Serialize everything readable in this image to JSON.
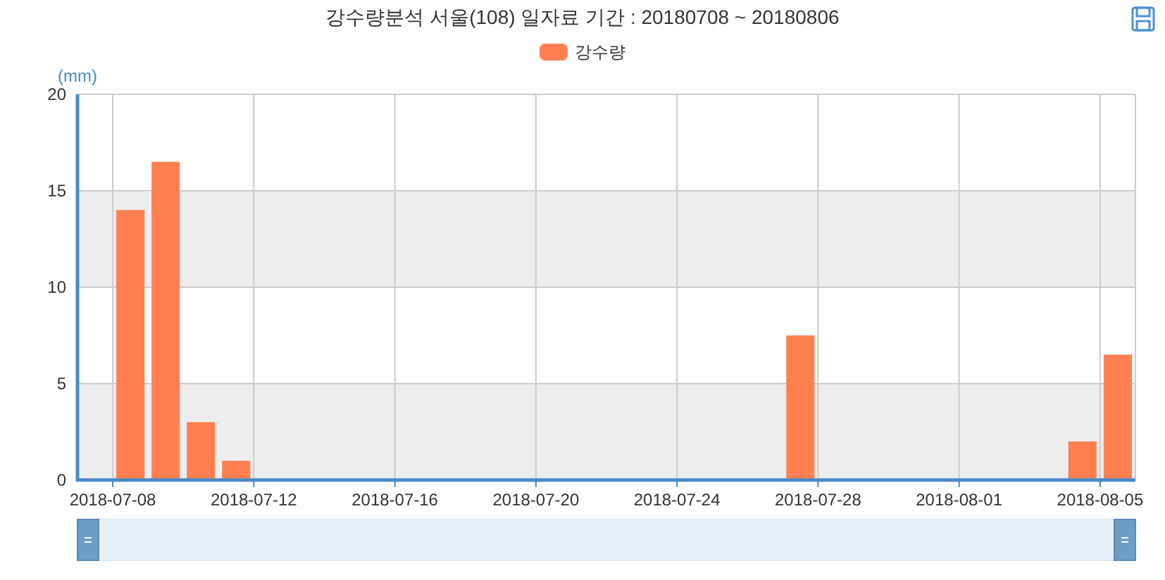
{
  "chart_data": {
    "type": "bar",
    "title": "강수량분석 서울(108) 일자료 기간 : 20180708 ~ 20180806",
    "ylabel": "(mm)",
    "x": [
      "2018-07-08T12:00",
      "2018-07-09T12:00",
      "2018-07-10T12:00",
      "2018-07-11T12:00",
      "2018-07-27T12:00",
      "2018-08-04T12:00",
      "2018-08-05T12:00"
    ],
    "series": [
      {
        "name": "강수량",
        "color": "#ff7f50",
        "values": [
          14,
          16.5,
          3,
          1,
          7.5,
          2,
          6.5
        ]
      }
    ],
    "xlim": [
      "2018-07-07",
      "2018-08-06"
    ],
    "xticks": [
      "2018-07-08",
      "2018-07-12",
      "2018-07-16",
      "2018-07-20",
      "2018-07-24",
      "2018-07-28",
      "2018-08-01",
      "2018-08-05"
    ],
    "ylim": [
      0,
      20
    ],
    "yticks": [
      0,
      5,
      10,
      15,
      20
    ],
    "grid": true,
    "legend": "top"
  }
}
